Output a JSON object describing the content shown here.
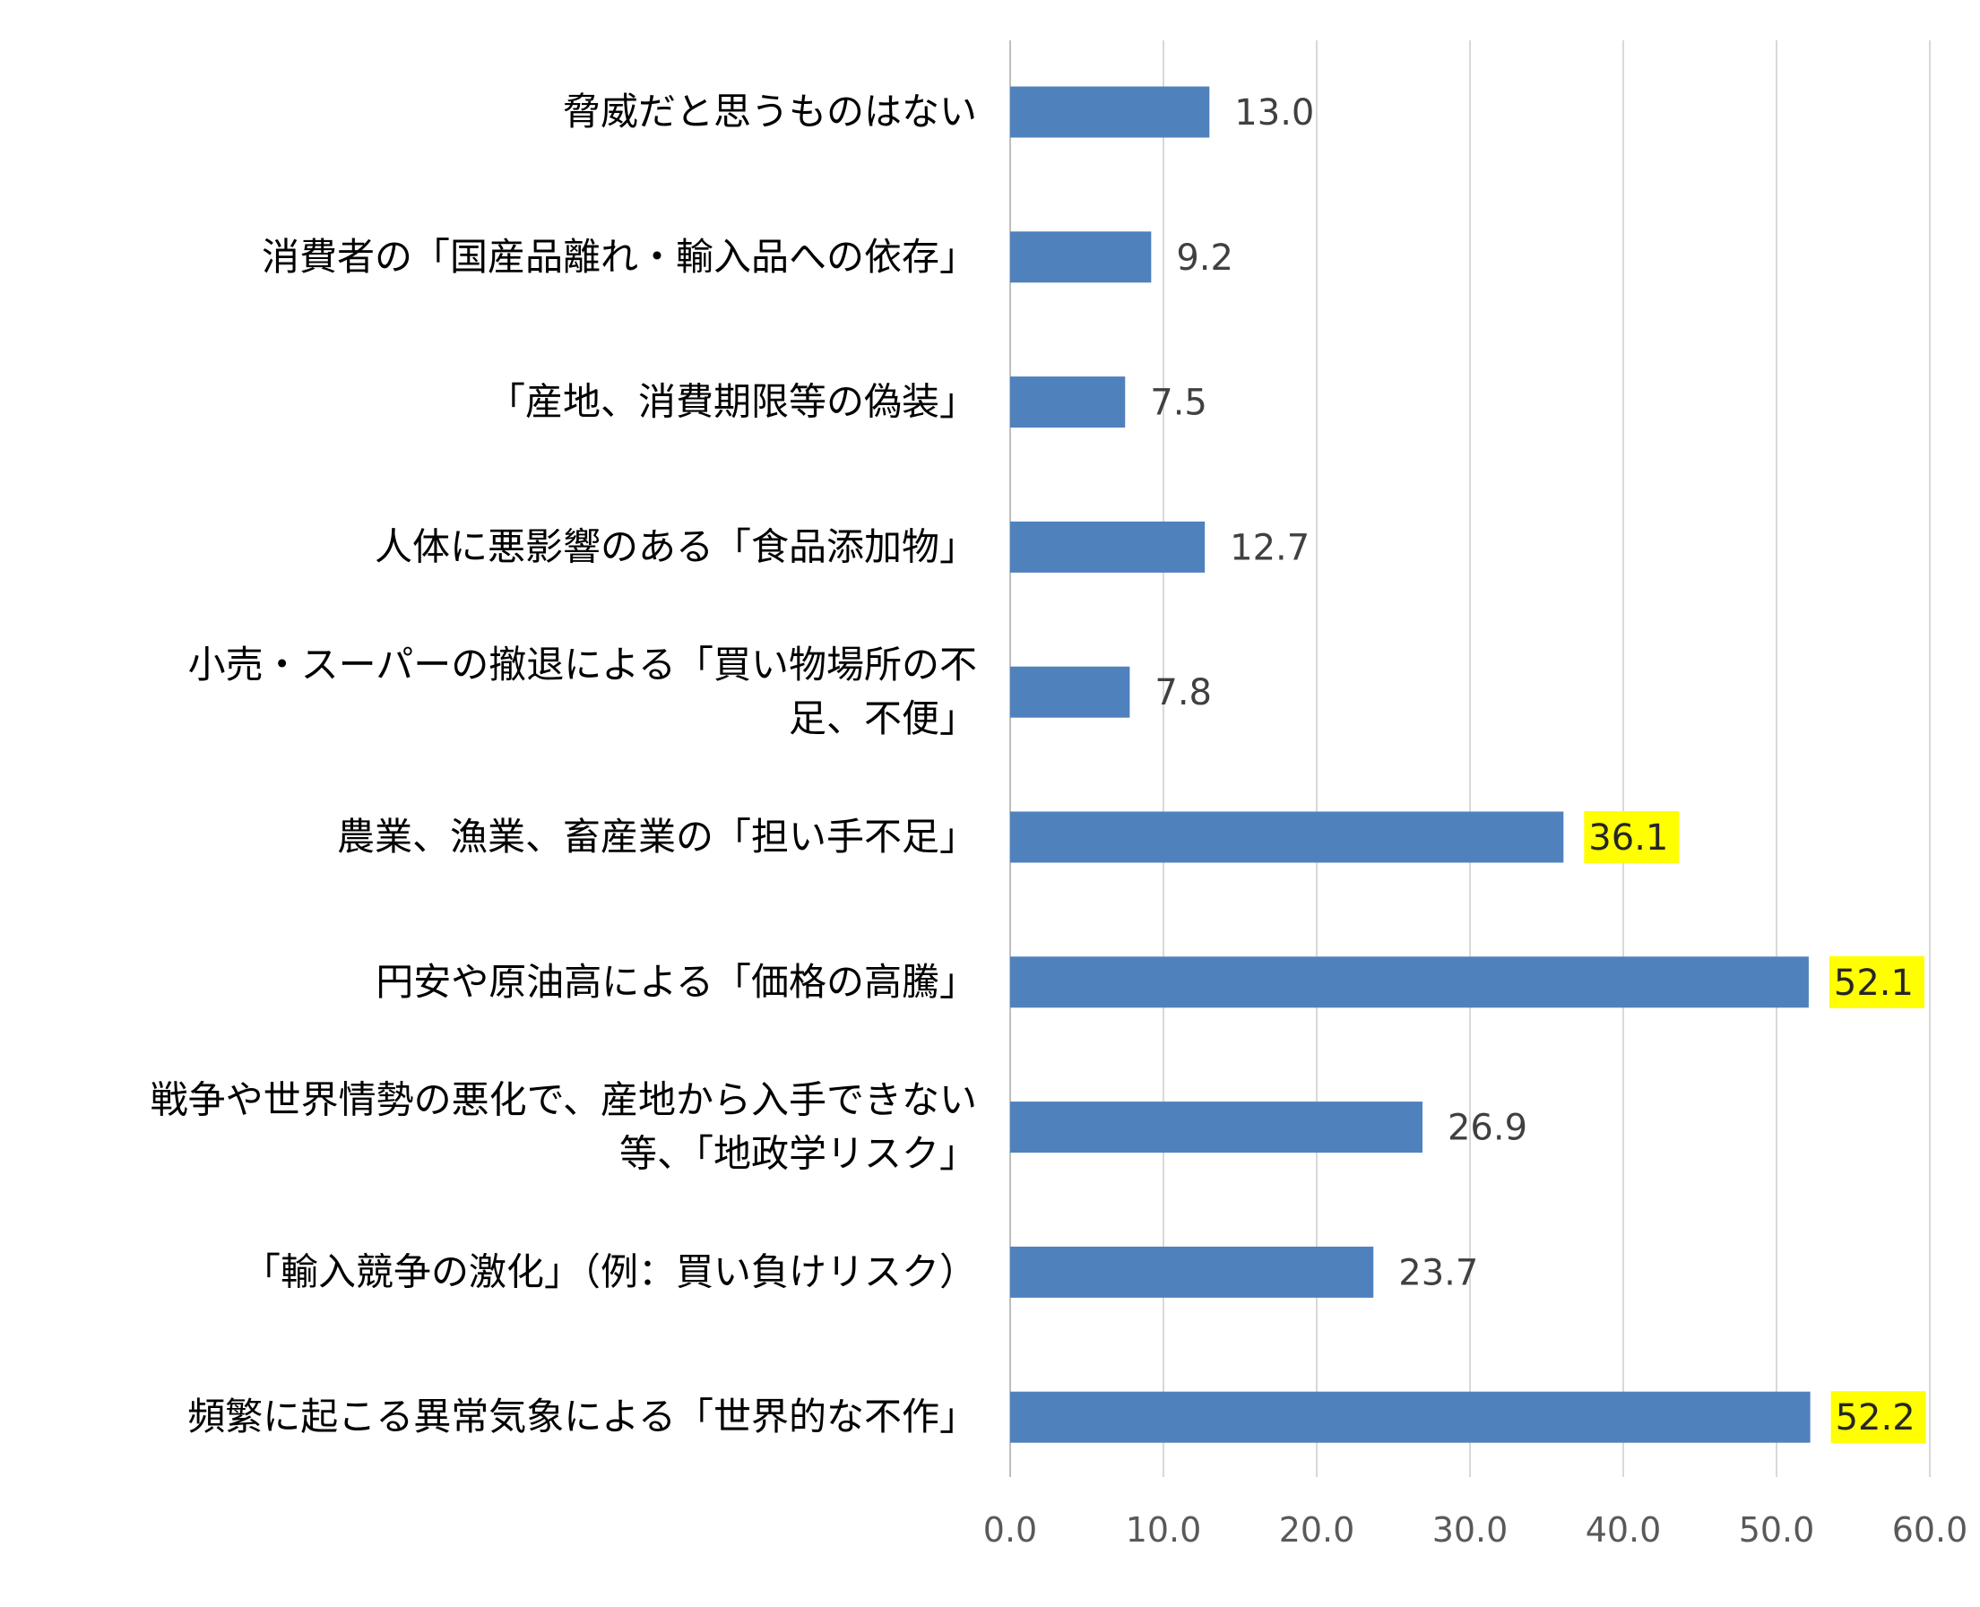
{
  "chart_data": {
    "type": "bar",
    "orientation": "horizontal",
    "title": "",
    "xlabel": "",
    "ylabel": "",
    "xlim": [
      0,
      60
    ],
    "grid": "vertical",
    "legend": "none",
    "bar_color": "#4F81BD",
    "highlight_color": "#FFFF00",
    "tick_labels": [
      "0.0",
      "10.0",
      "20.0",
      "30.0",
      "40.0",
      "50.0",
      "60.0"
    ],
    "categories": [
      [
        "脅威だと思うものはない"
      ],
      [
        "消費者の「国産品離れ・輸入品への依存」"
      ],
      [
        "「産地、消費期限等の偽装」"
      ],
      [
        "人体に悪影響のある「食品添加物」"
      ],
      [
        "小売・スーパーの撤退による「買い物場所の不",
        "足、不便」"
      ],
      [
        "農業、漁業、畜産業の「担い手不足」"
      ],
      [
        "円安や原油高による「価格の高騰」"
      ],
      [
        "戦争や世界情勢の悪化で、産地から入手できない",
        "等、「地政学リスク」"
      ],
      [
        "「輸入競争の激化」（例：買い負けリスク）"
      ],
      [
        "頻繁に起こる異常気象による「世界的な不作」"
      ]
    ],
    "values": [
      13.0,
      9.2,
      7.5,
      12.7,
      7.8,
      36.1,
      52.1,
      26.9,
      23.7,
      52.2
    ],
    "value_labels": [
      "13.0",
      "9.2",
      "7.5",
      "12.7",
      "7.8",
      "36.1",
      "52.1",
      "26.9",
      "23.7",
      "52.2"
    ],
    "highlighted": [
      false,
      false,
      false,
      false,
      false,
      true,
      true,
      false,
      false,
      true
    ]
  }
}
